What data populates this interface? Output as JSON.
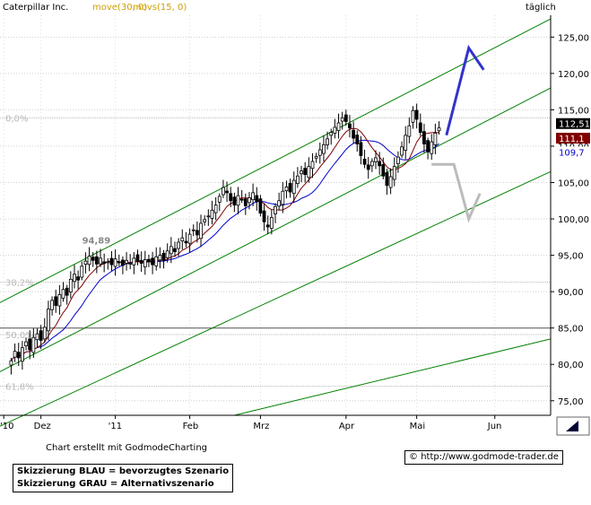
{
  "header": {
    "symbol": "Caterpillar Inc.",
    "ma1_label": "move(30, 0)",
    "ma2_label": "movs(15, 0)",
    "interval": "täglich"
  },
  "footer": {
    "credit": "Chart erstellt mit GodmodeCharting",
    "legend_blue": "Skizzierung BLAU = bevorzugtes Szenario",
    "legend_grey": "Skizzierung GRAU = Alternativszenario",
    "url": "http://www.godmode-trader.de",
    "copyright_symbol": "©"
  },
  "colors": {
    "candle": "#000000",
    "channel": "#008000",
    "ma30": "#800000",
    "ma15": "#0000cc",
    "blue_scenario": "#3333cc",
    "grey_scenario": "#bbbbbb",
    "fib": "#b8b8b8",
    "price_tag": "#000000",
    "ma30_tag": "#800000",
    "ma15_tag": "#0000cc"
  },
  "chart_data": {
    "type": "candlestick",
    "ylim": [
      73,
      128
    ],
    "y_ticks": [
      75,
      80,
      85,
      90,
      95,
      100,
      105,
      110,
      115,
      120,
      125
    ],
    "y_tick_labels": [
      "75,00",
      "80,00",
      "85,00",
      "90,00",
      "95,00",
      "100,00",
      "105,00",
      "110,00",
      "115,00",
      "120,00",
      "125,00"
    ],
    "x_ticks": [
      {
        "label": "'10",
        "t": -2
      },
      {
        "label": "Dez",
        "t": 8
      },
      {
        "label": "'11",
        "t": 28
      },
      {
        "label": "Feb",
        "t": 48
      },
      {
        "label": "Mrz",
        "t": 67
      },
      {
        "label": "Apr",
        "t": 90
      },
      {
        "label": "Mai",
        "t": 109
      },
      {
        "label": "Jun",
        "t": 130
      }
    ],
    "x_range": [
      -3,
      145
    ],
    "last_close": 112.51,
    "last_ma30": 111.1,
    "last_ma15": 109.7,
    "last_close_label": "112,51",
    "last_ma30_label": "111,1",
    "last_ma15_label": "109,7",
    "high_label": "94,89",
    "high_point": {
      "t": 21,
      "y": 94.89
    },
    "fib_levels": [
      {
        "label": "0,0%",
        "y": 113.9
      },
      {
        "label": "38,2%",
        "y": 91.3
      },
      {
        "label": "50,0%",
        "y": 84.1
      },
      {
        "label": "61,8%",
        "y": 77.0
      }
    ],
    "support_line_y": 85.0,
    "channel_lines": [
      {
        "t1": -3,
        "y1": 88.5,
        "t2": 145,
        "y2": 127.5
      },
      {
        "t1": -3,
        "y1": 79.0,
        "t2": 145,
        "y2": 118.0
      },
      {
        "t1": -3,
        "y1": 71.5,
        "t2": 145,
        "y2": 106.5
      },
      {
        "t1": 60,
        "y1": 73.0,
        "t2": 145,
        "y2": 83.5
      }
    ],
    "blue_scenario": [
      {
        "t": 117,
        "y": 111.5
      },
      {
        "t": 123,
        "y": 123.5
      },
      {
        "t": 127,
        "y": 120.5
      }
    ],
    "grey_scenario": [
      {
        "t": 113,
        "y": 107.5
      },
      {
        "t": 119,
        "y": 107.5
      },
      {
        "t": 123,
        "y": 100.0
      },
      {
        "t": 126,
        "y": 103.5
      }
    ],
    "closes": [
      80.5,
      81.8,
      80.9,
      82.3,
      83.1,
      82.0,
      83.7,
      84.2,
      83.3,
      85.1,
      87.6,
      88.8,
      88.1,
      89.6,
      90.3,
      89.5,
      91.7,
      92.4,
      91.6,
      93.5,
      94.2,
      94.89,
      94.3,
      93.8,
      94.6,
      93.9,
      94.1,
      93.7,
      94.5,
      94.0,
      93.6,
      94.3,
      93.9,
      94.6,
      94.2,
      93.9,
      94.4,
      94.1,
      93.7,
      94.8,
      95.0,
      94.3,
      95.6,
      96.2,
      95.5,
      96.8,
      97.4,
      96.7,
      97.9,
      98.5,
      97.8,
      99.4,
      99.9,
      100.4,
      101.2,
      101.9,
      103.1,
      104.3,
      103.6,
      102.5,
      101.9,
      103.2,
      102.6,
      101.8,
      102.9,
      103.6,
      102.4,
      100.8,
      99.6,
      98.9,
      100.2,
      101.7,
      102.5,
      103.8,
      104.4,
      103.7,
      105.3,
      105.9,
      106.6,
      106.1,
      107.2,
      107.9,
      108.6,
      109.5,
      110.2,
      111.0,
      111.9,
      112.6,
      113.2,
      113.9,
      113.4,
      112.5,
      111.1,
      110.3,
      108.7,
      107.5,
      106.8,
      107.9,
      108.4,
      107.3,
      105.9,
      104.6,
      105.8,
      107.2,
      108.5,
      109.9,
      111.5,
      112.8,
      114.9,
      113.7,
      111.9,
      110.3,
      109.2,
      110.6,
      111.8,
      112.51
    ]
  }
}
